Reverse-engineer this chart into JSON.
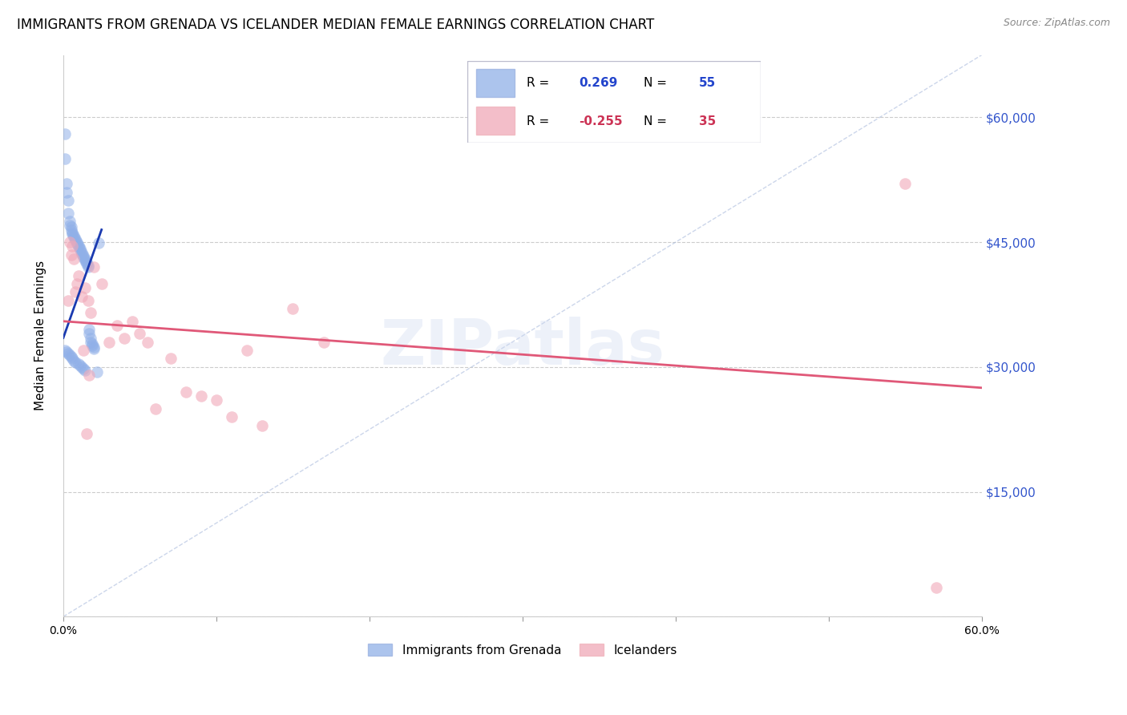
{
  "title": "IMMIGRANTS FROM GRENADA VS ICELANDER MEDIAN FEMALE EARNINGS CORRELATION CHART",
  "source": "Source: ZipAtlas.com",
  "ylabel": "Median Female Earnings",
  "xlim": [
    0.0,
    0.6
  ],
  "ylim": [
    0,
    67500
  ],
  "yticks": [
    0,
    15000,
    30000,
    45000,
    60000
  ],
  "ytick_labels": [
    "",
    "$15,000",
    "$30,000",
    "$45,000",
    "$60,000"
  ],
  "xticks": [
    0.0,
    0.1,
    0.2,
    0.3,
    0.4,
    0.5,
    0.6
  ],
  "xtick_labels": [
    "0.0%",
    "",
    "",
    "",
    "",
    "",
    "60.0%"
  ],
  "blue_R": 0.269,
  "blue_N": 55,
  "pink_R": -0.255,
  "pink_N": 35,
  "blue_color": "#90b0e8",
  "pink_color": "#f0a8b8",
  "blue_line_color": "#1a3ab0",
  "pink_line_color": "#e05878",
  "watermark": "ZIPatlas",
  "legend_label_blue": "Immigrants from Grenada",
  "legend_label_pink": "Icelanders",
  "blue_scatter_x": [
    0.001,
    0.001,
    0.002,
    0.002,
    0.003,
    0.003,
    0.004,
    0.004,
    0.005,
    0.005,
    0.006,
    0.006,
    0.007,
    0.007,
    0.008,
    0.008,
    0.009,
    0.009,
    0.01,
    0.01,
    0.011,
    0.011,
    0.012,
    0.012,
    0.013,
    0.013,
    0.014,
    0.014,
    0.015,
    0.015,
    0.016,
    0.016,
    0.017,
    0.017,
    0.018,
    0.018,
    0.019,
    0.019,
    0.02,
    0.02,
    0.001,
    0.002,
    0.003,
    0.004,
    0.005,
    0.006,
    0.007,
    0.008,
    0.023,
    0.01,
    0.011,
    0.012,
    0.013,
    0.014,
    0.022
  ],
  "blue_scatter_y": [
    58000,
    55000,
    52000,
    51000,
    50000,
    48500,
    47500,
    47000,
    46800,
    46500,
    46200,
    46000,
    45800,
    45600,
    45400,
    45200,
    45000,
    44800,
    44600,
    44400,
    44200,
    44000,
    43800,
    43600,
    43400,
    43200,
    43000,
    42800,
    42600,
    42400,
    42200,
    42000,
    34500,
    34000,
    33500,
    33000,
    32800,
    32600,
    32400,
    32200,
    32000,
    31800,
    31600,
    31400,
    31200,
    31000,
    30800,
    30600,
    44900,
    30400,
    30200,
    30000,
    29800,
    29600,
    29400
  ],
  "pink_scatter_x": [
    0.003,
    0.004,
    0.005,
    0.006,
    0.007,
    0.008,
    0.009,
    0.01,
    0.012,
    0.014,
    0.016,
    0.018,
    0.02,
    0.025,
    0.03,
    0.035,
    0.04,
    0.045,
    0.05,
    0.055,
    0.06,
    0.07,
    0.08,
    0.09,
    0.1,
    0.11,
    0.12,
    0.13,
    0.15,
    0.17,
    0.55,
    0.013,
    0.015,
    0.017,
    0.57
  ],
  "pink_scatter_y": [
    38000,
    45000,
    43500,
    44500,
    43000,
    39000,
    40000,
    41000,
    38500,
    39500,
    38000,
    36500,
    42000,
    40000,
    33000,
    35000,
    33500,
    35500,
    34000,
    33000,
    25000,
    31000,
    27000,
    26500,
    26000,
    24000,
    32000,
    23000,
    37000,
    33000,
    52000,
    32000,
    22000,
    29000,
    3500
  ],
  "blue_trend_x": [
    0.0,
    0.025
  ],
  "blue_trend_y": [
    33500,
    46500
  ],
  "pink_trend_x": [
    0.0,
    0.6
  ],
  "pink_trend_y": [
    35500,
    27500
  ],
  "ref_line_x": [
    0.0,
    0.6
  ],
  "ref_line_y": [
    0,
    67500
  ]
}
